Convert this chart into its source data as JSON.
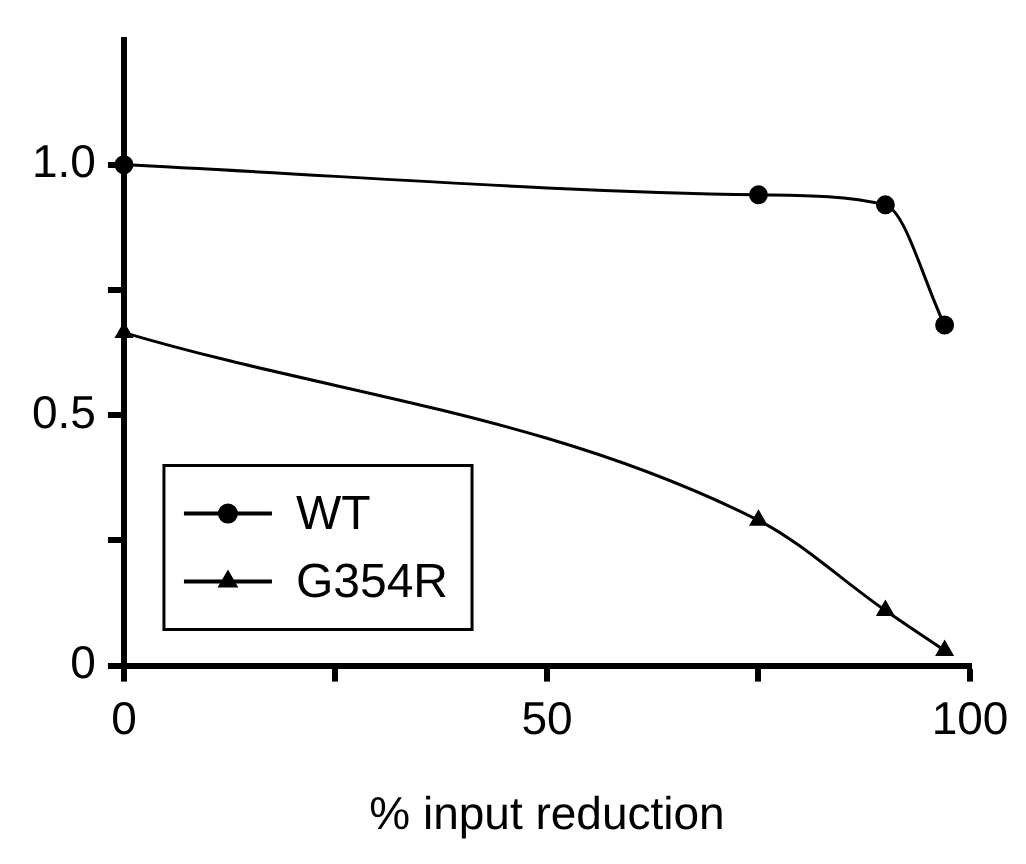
{
  "chart_data": {
    "type": "line",
    "xlabel": "% input reduction",
    "xlim": [
      0,
      100
    ],
    "xticks": [
      0,
      {
        "value": 25,
        "label": null
      },
      50,
      {
        "value": 75,
        "label": null
      },
      100
    ],
    "ylim": [
      0,
      1.25
    ],
    "yticks": [
      0,
      {
        "value": 0.25,
        "label": null
      },
      0.5,
      {
        "value": 0.75,
        "label": null
      },
      {
        "value": 1,
        "label": "1.0"
      }
    ],
    "grid": false,
    "legend": "bottom left",
    "line_style": "solid",
    "series": [
      {
        "name": "WT",
        "color": "#000000",
        "marker": "circle",
        "x": [
          0,
          75,
          90,
          97
        ],
        "values": [
          1.0,
          0.94,
          0.92,
          0.68
        ]
      },
      {
        "name": "G354R",
        "color": "#000000",
        "marker": "triangle",
        "x": [
          0,
          75,
          90,
          97
        ],
        "values": [
          0.665,
          0.29,
          0.11,
          0.03
        ]
      }
    ]
  }
}
